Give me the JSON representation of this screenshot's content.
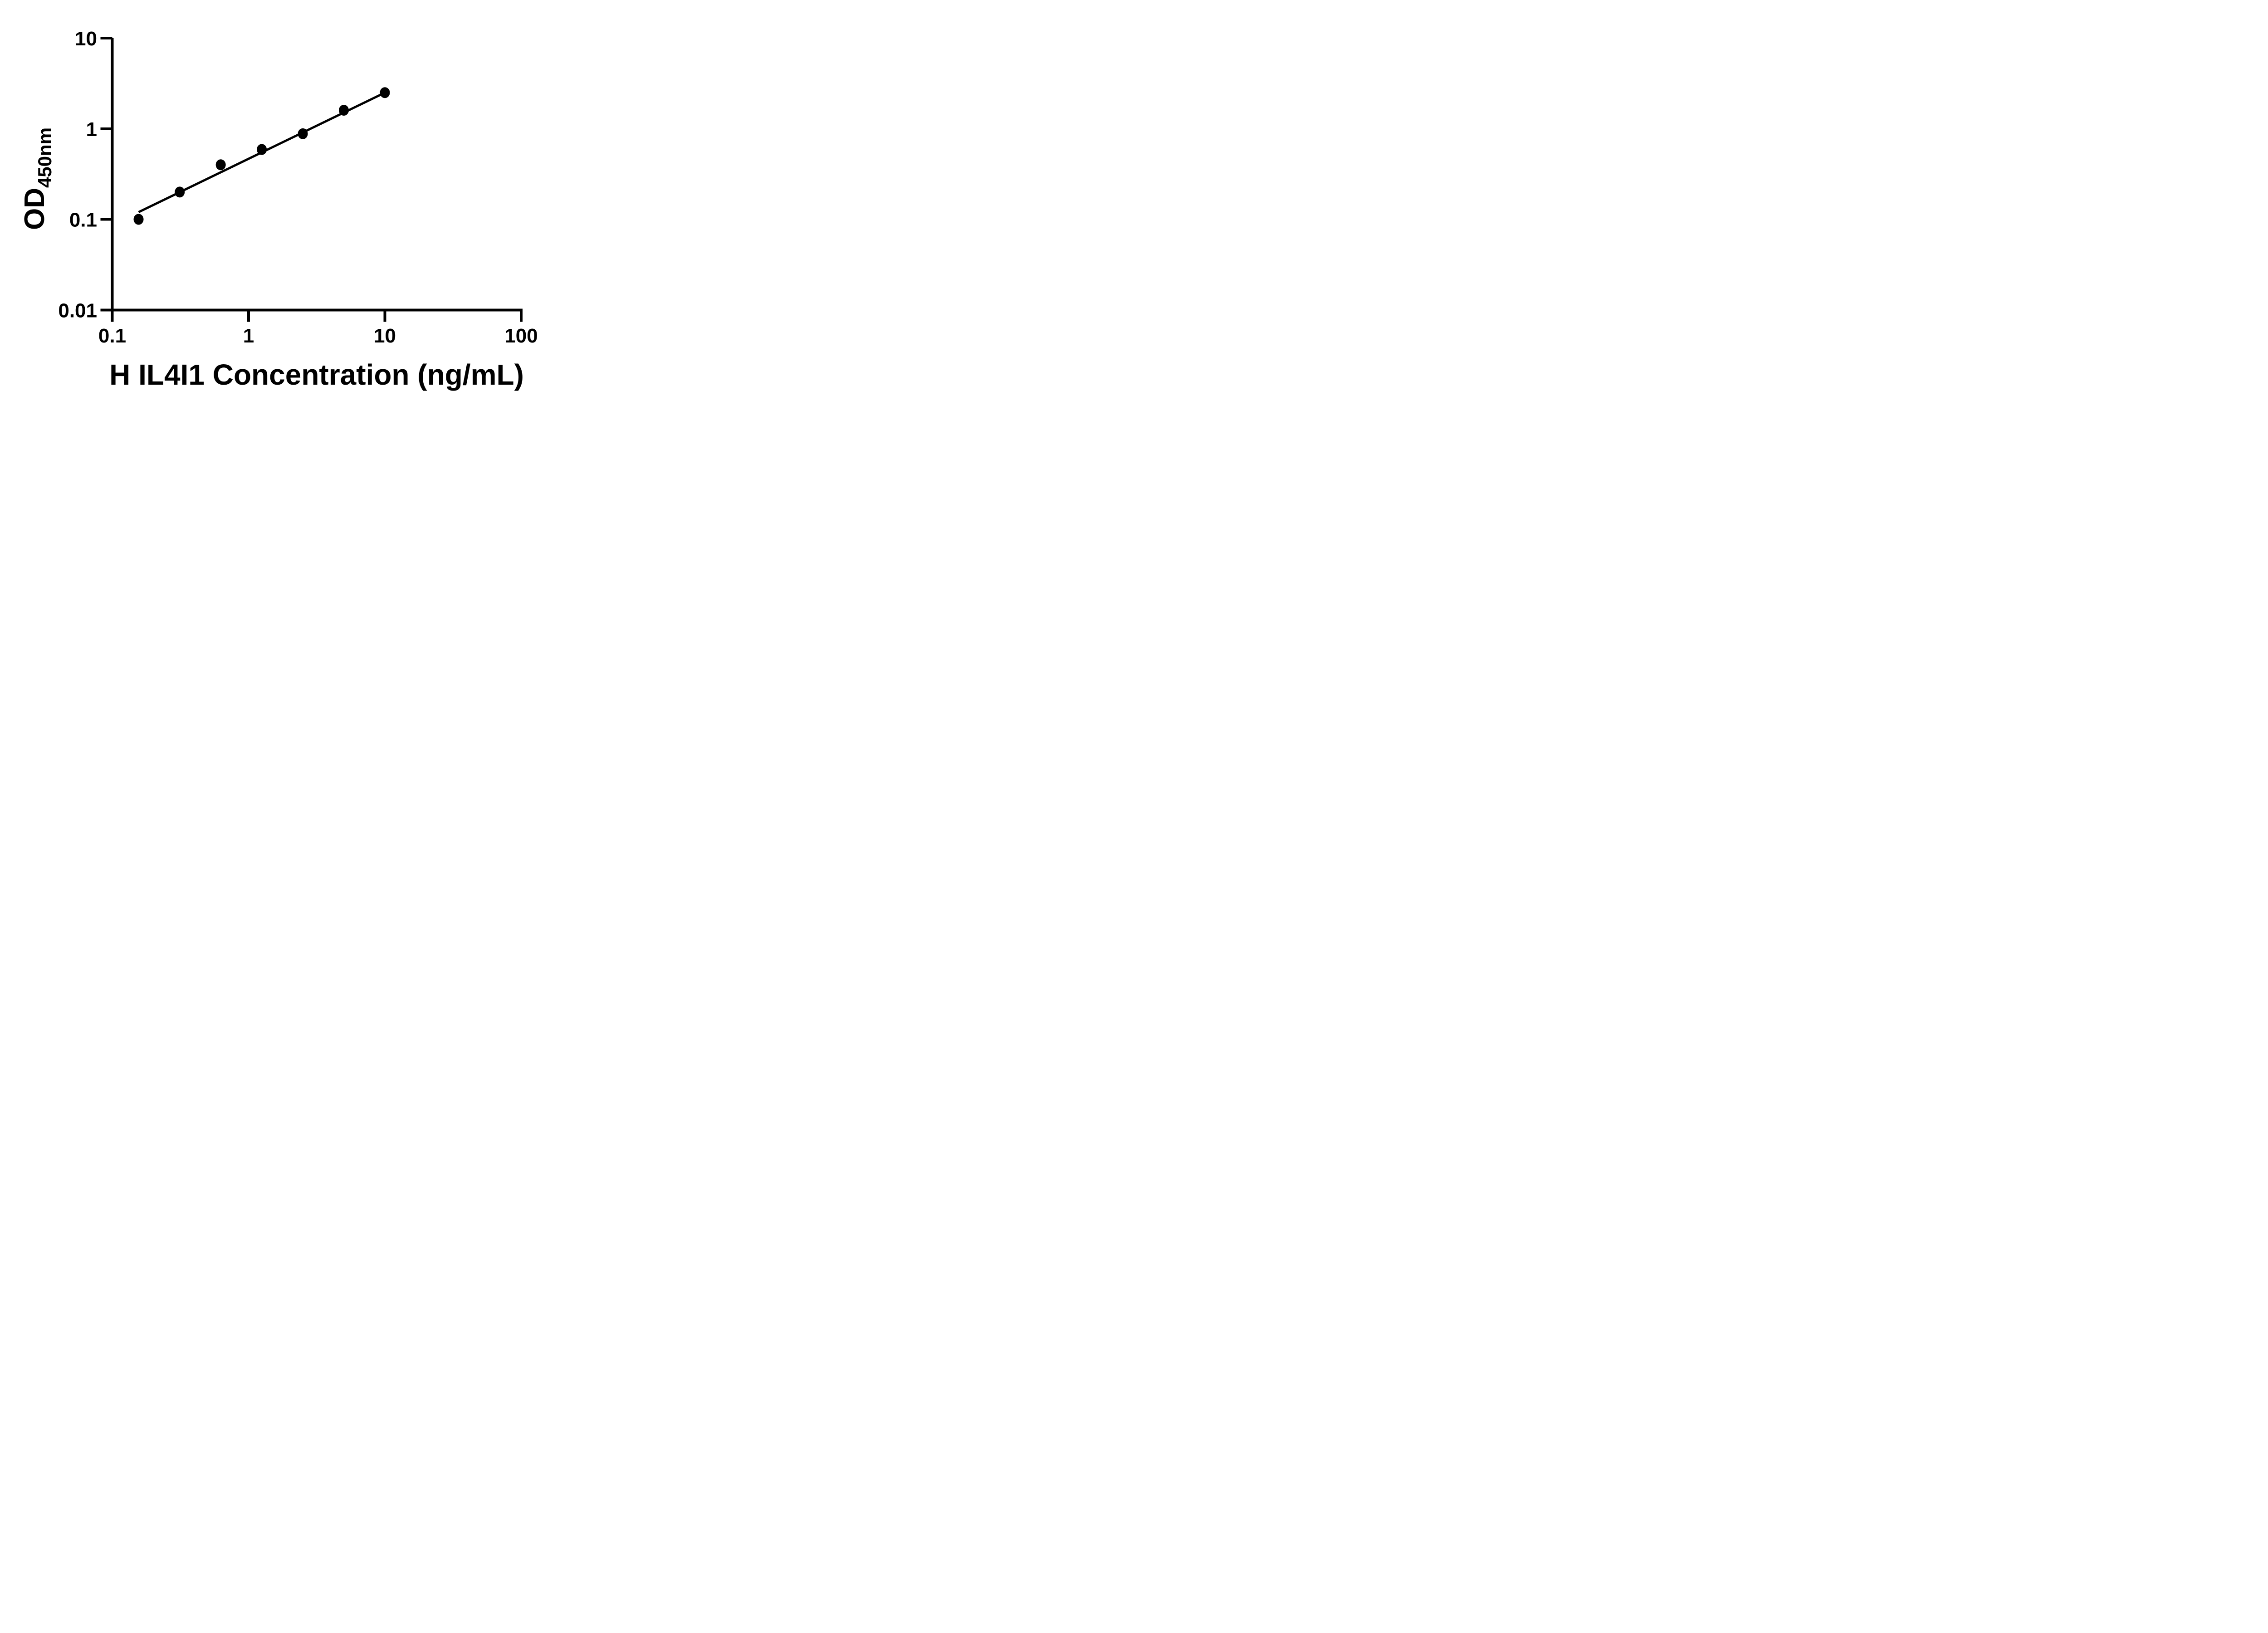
{
  "figure": {
    "background_color": "#ffffff",
    "ink_color": "#000000"
  },
  "chart_data": {
    "type": "scatter",
    "title": "",
    "xlabel": "H IL4I1 Concentration (ng/mL)",
    "ylabel": "OD",
    "ylabel_subscript": "450nm",
    "x_scale": "log",
    "y_scale": "log",
    "xlim": [
      0.1,
      100
    ],
    "ylim": [
      0.01,
      10
    ],
    "x_ticks": [
      0.1,
      1,
      10,
      100
    ],
    "x_tick_labels": [
      "0.1",
      "1",
      "10",
      "100"
    ],
    "y_ticks": [
      0.01,
      0.1,
      1,
      10
    ],
    "y_tick_labels": [
      "0.01",
      "0.1",
      "1",
      "10"
    ],
    "grid": false,
    "legend": null,
    "marker_color": "#000000",
    "line_color": "#000000",
    "series": [
      {
        "name": "standard-curve-points",
        "type": "scatter",
        "marker": "filled-circle",
        "x": [
          0.156,
          0.3125,
          0.625,
          1.25,
          2.5,
          5,
          10
        ],
        "y": [
          0.1,
          0.2,
          0.4,
          0.59,
          0.88,
          1.6,
          2.5
        ]
      },
      {
        "name": "fit-line",
        "type": "line",
        "x": [
          0.156,
          10
        ],
        "y": [
          0.12,
          2.5
        ]
      }
    ]
  }
}
